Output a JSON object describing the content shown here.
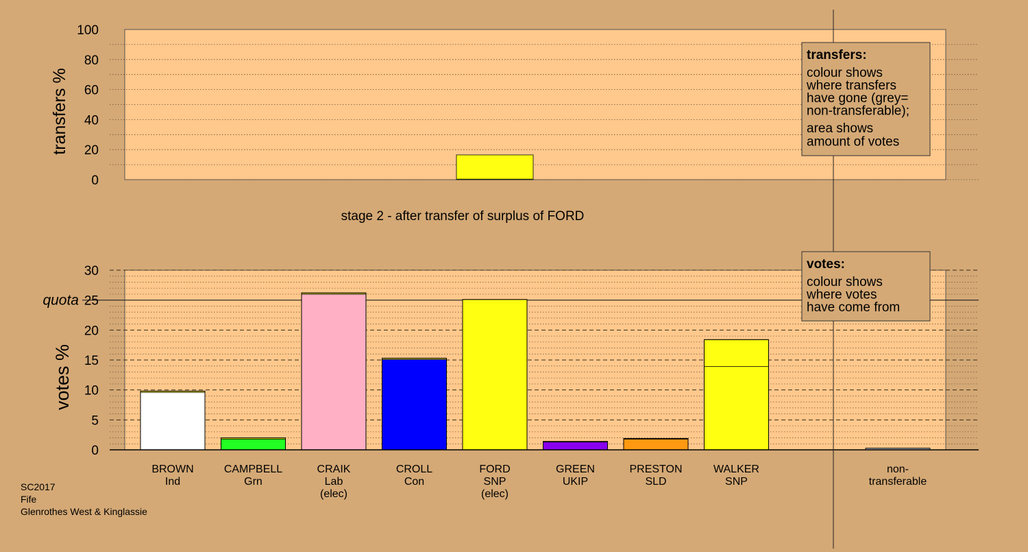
{
  "chart_data": {
    "type": "bar",
    "stage_title": "stage 2 - after transfer of surplus of FORD",
    "footer": [
      "SC2017",
      "Fife",
      "Glenrothes West & Kinglassie"
    ],
    "colors": {
      "background": "#d4a976",
      "plot_bg": "#ffc88c",
      "BROWN": "#ffffff",
      "CAMPBELL": "#22ff22",
      "CRAIK": "#ffb0c4",
      "CROLL": "#0000ff",
      "FORD": "#ffff11",
      "GREEN": "#8800ee",
      "PRESTON": "#ff9911",
      "WALKER": "#ffff11",
      "nontransferable": "#999999"
    },
    "transfers": {
      "ylabel": "transfers %",
      "ylim": [
        0,
        100
      ],
      "ticks": [
        0,
        20,
        40,
        60,
        80,
        100
      ],
      "bar": {
        "candidate": "FORD",
        "total": 16.5,
        "segments": [
          {
            "color_key": "CAMPBELL",
            "value": 0.4
          },
          {
            "color_key": "WALKER",
            "value": 16.1
          }
        ]
      },
      "legend": {
        "title": "transfers:",
        "lines": [
          "colour shows",
          "where transfers",
          "have gone (grey=",
          "non-transferable);"
        ],
        "lines2": [
          "area shows",
          "amount of votes"
        ]
      }
    },
    "votes": {
      "ylabel": "votes %",
      "ylim": [
        0,
        30
      ],
      "ticks": [
        0,
        5,
        10,
        15,
        20,
        25,
        30
      ],
      "quota_label": "quota",
      "quota": 25,
      "legend": {
        "title": "votes:",
        "lines": [
          "colour shows",
          "where votes",
          "have come from"
        ]
      },
      "candidates": [
        {
          "name": "BROWN",
          "party": "Ind",
          "elected": "",
          "color_key": "BROWN",
          "value": 9.8,
          "segments": [
            {
              "color_key": "BROWN",
              "value": 9.6
            },
            {
              "color_key": "WALKER",
              "value": 0.2
            }
          ]
        },
        {
          "name": "CAMPBELL",
          "party": "Grn",
          "elected": "",
          "color_key": "CAMPBELL",
          "value": 2.0,
          "segments": [
            {
              "color_key": "CAMPBELL",
              "value": 1.8
            },
            {
              "color_key": "WALKER",
              "value": 0.2
            }
          ]
        },
        {
          "name": "CRAIK",
          "party": "Lab",
          "elected": "(elec)",
          "color_key": "CRAIK",
          "value": 26.2,
          "segments": [
            {
              "color_key": "CRAIK",
              "value": 26.0
            },
            {
              "color_key": "WALKER",
              "value": 0.2
            }
          ]
        },
        {
          "name": "CROLL",
          "party": "Con",
          "elected": "",
          "color_key": "CROLL",
          "value": 15.3,
          "segments": [
            {
              "color_key": "CROLL",
              "value": 15.1
            },
            {
              "color_key": "WALKER",
              "value": 0.2
            }
          ]
        },
        {
          "name": "FORD",
          "party": "SNP",
          "elected": "(elec)",
          "color_key": "FORD",
          "value": 25.1,
          "segments": [
            {
              "color_key": "FORD",
              "value": 25.1
            }
          ]
        },
        {
          "name": "GREEN",
          "party": "UKIP",
          "elected": "",
          "color_key": "GREEN",
          "value": 1.4,
          "segments": [
            {
              "color_key": "GREEN",
              "value": 1.3
            },
            {
              "color_key": "WALKER",
              "value": 0.1
            }
          ]
        },
        {
          "name": "PRESTON",
          "party": "SLD",
          "elected": "",
          "color_key": "PRESTON",
          "value": 1.9,
          "segments": [
            {
              "color_key": "PRESTON",
              "value": 1.8
            },
            {
              "color_key": "WALKER",
              "value": 0.1
            }
          ]
        },
        {
          "name": "WALKER",
          "party": "SNP",
          "elected": "",
          "color_key": "WALKER",
          "value": 18.4,
          "segments": [
            {
              "color_key": "WALKER",
              "value": 13.9
            },
            {
              "color_key": "FORD",
              "value": 4.5
            }
          ]
        }
      ],
      "nontransferable": {
        "name": "non-",
        "name2": "transferable",
        "value": 0.3
      }
    }
  }
}
